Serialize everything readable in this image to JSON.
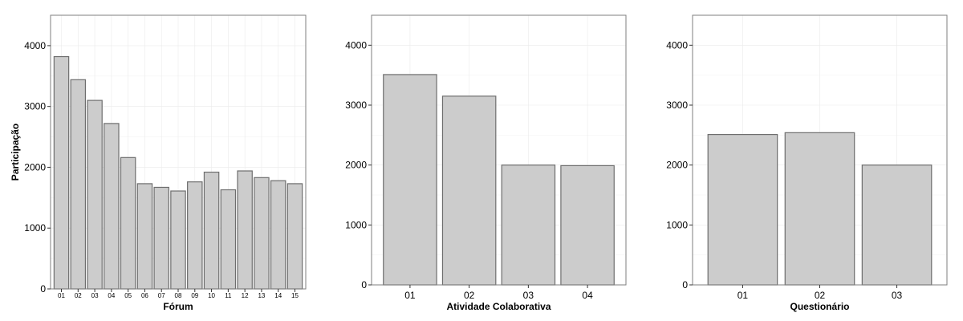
{
  "colors": {
    "bar_fill": "#cccccc",
    "bar_stroke": "#6e6e6e",
    "frame": "#7f7f7f"
  },
  "chart_data": [
    {
      "type": "bar",
      "ylabel": "Participação",
      "xlabel": "Fórum",
      "categories": [
        "01",
        "02",
        "03",
        "04",
        "05",
        "06",
        "07",
        "08",
        "09",
        "10",
        "11",
        "12",
        "13",
        "14",
        "15"
      ],
      "values": [
        3820,
        3440,
        3100,
        2720,
        2160,
        1730,
        1670,
        1610,
        1760,
        1920,
        1630,
        1940,
        1830,
        1780,
        1730
      ],
      "yticks": [
        0,
        1000,
        2000,
        3000,
        4000
      ],
      "ylim": [
        0,
        4500
      ],
      "grid": true
    },
    {
      "type": "bar",
      "ylabel": "",
      "xlabel": "Atividade Colaborativa",
      "categories": [
        "01",
        "02",
        "03",
        "04"
      ],
      "values": [
        3510,
        3150,
        2000,
        1990
      ],
      "yticks": [
        0,
        1000,
        2000,
        3000,
        4000
      ],
      "ylim": [
        0,
        4500
      ],
      "grid": true
    },
    {
      "type": "bar",
      "ylabel": "",
      "xlabel": "Questionário",
      "categories": [
        "01",
        "02",
        "03"
      ],
      "values": [
        2510,
        2540,
        2000
      ],
      "yticks": [
        0,
        1000,
        2000,
        3000,
        4000
      ],
      "ylim": [
        0,
        4500
      ],
      "grid": true
    }
  ]
}
